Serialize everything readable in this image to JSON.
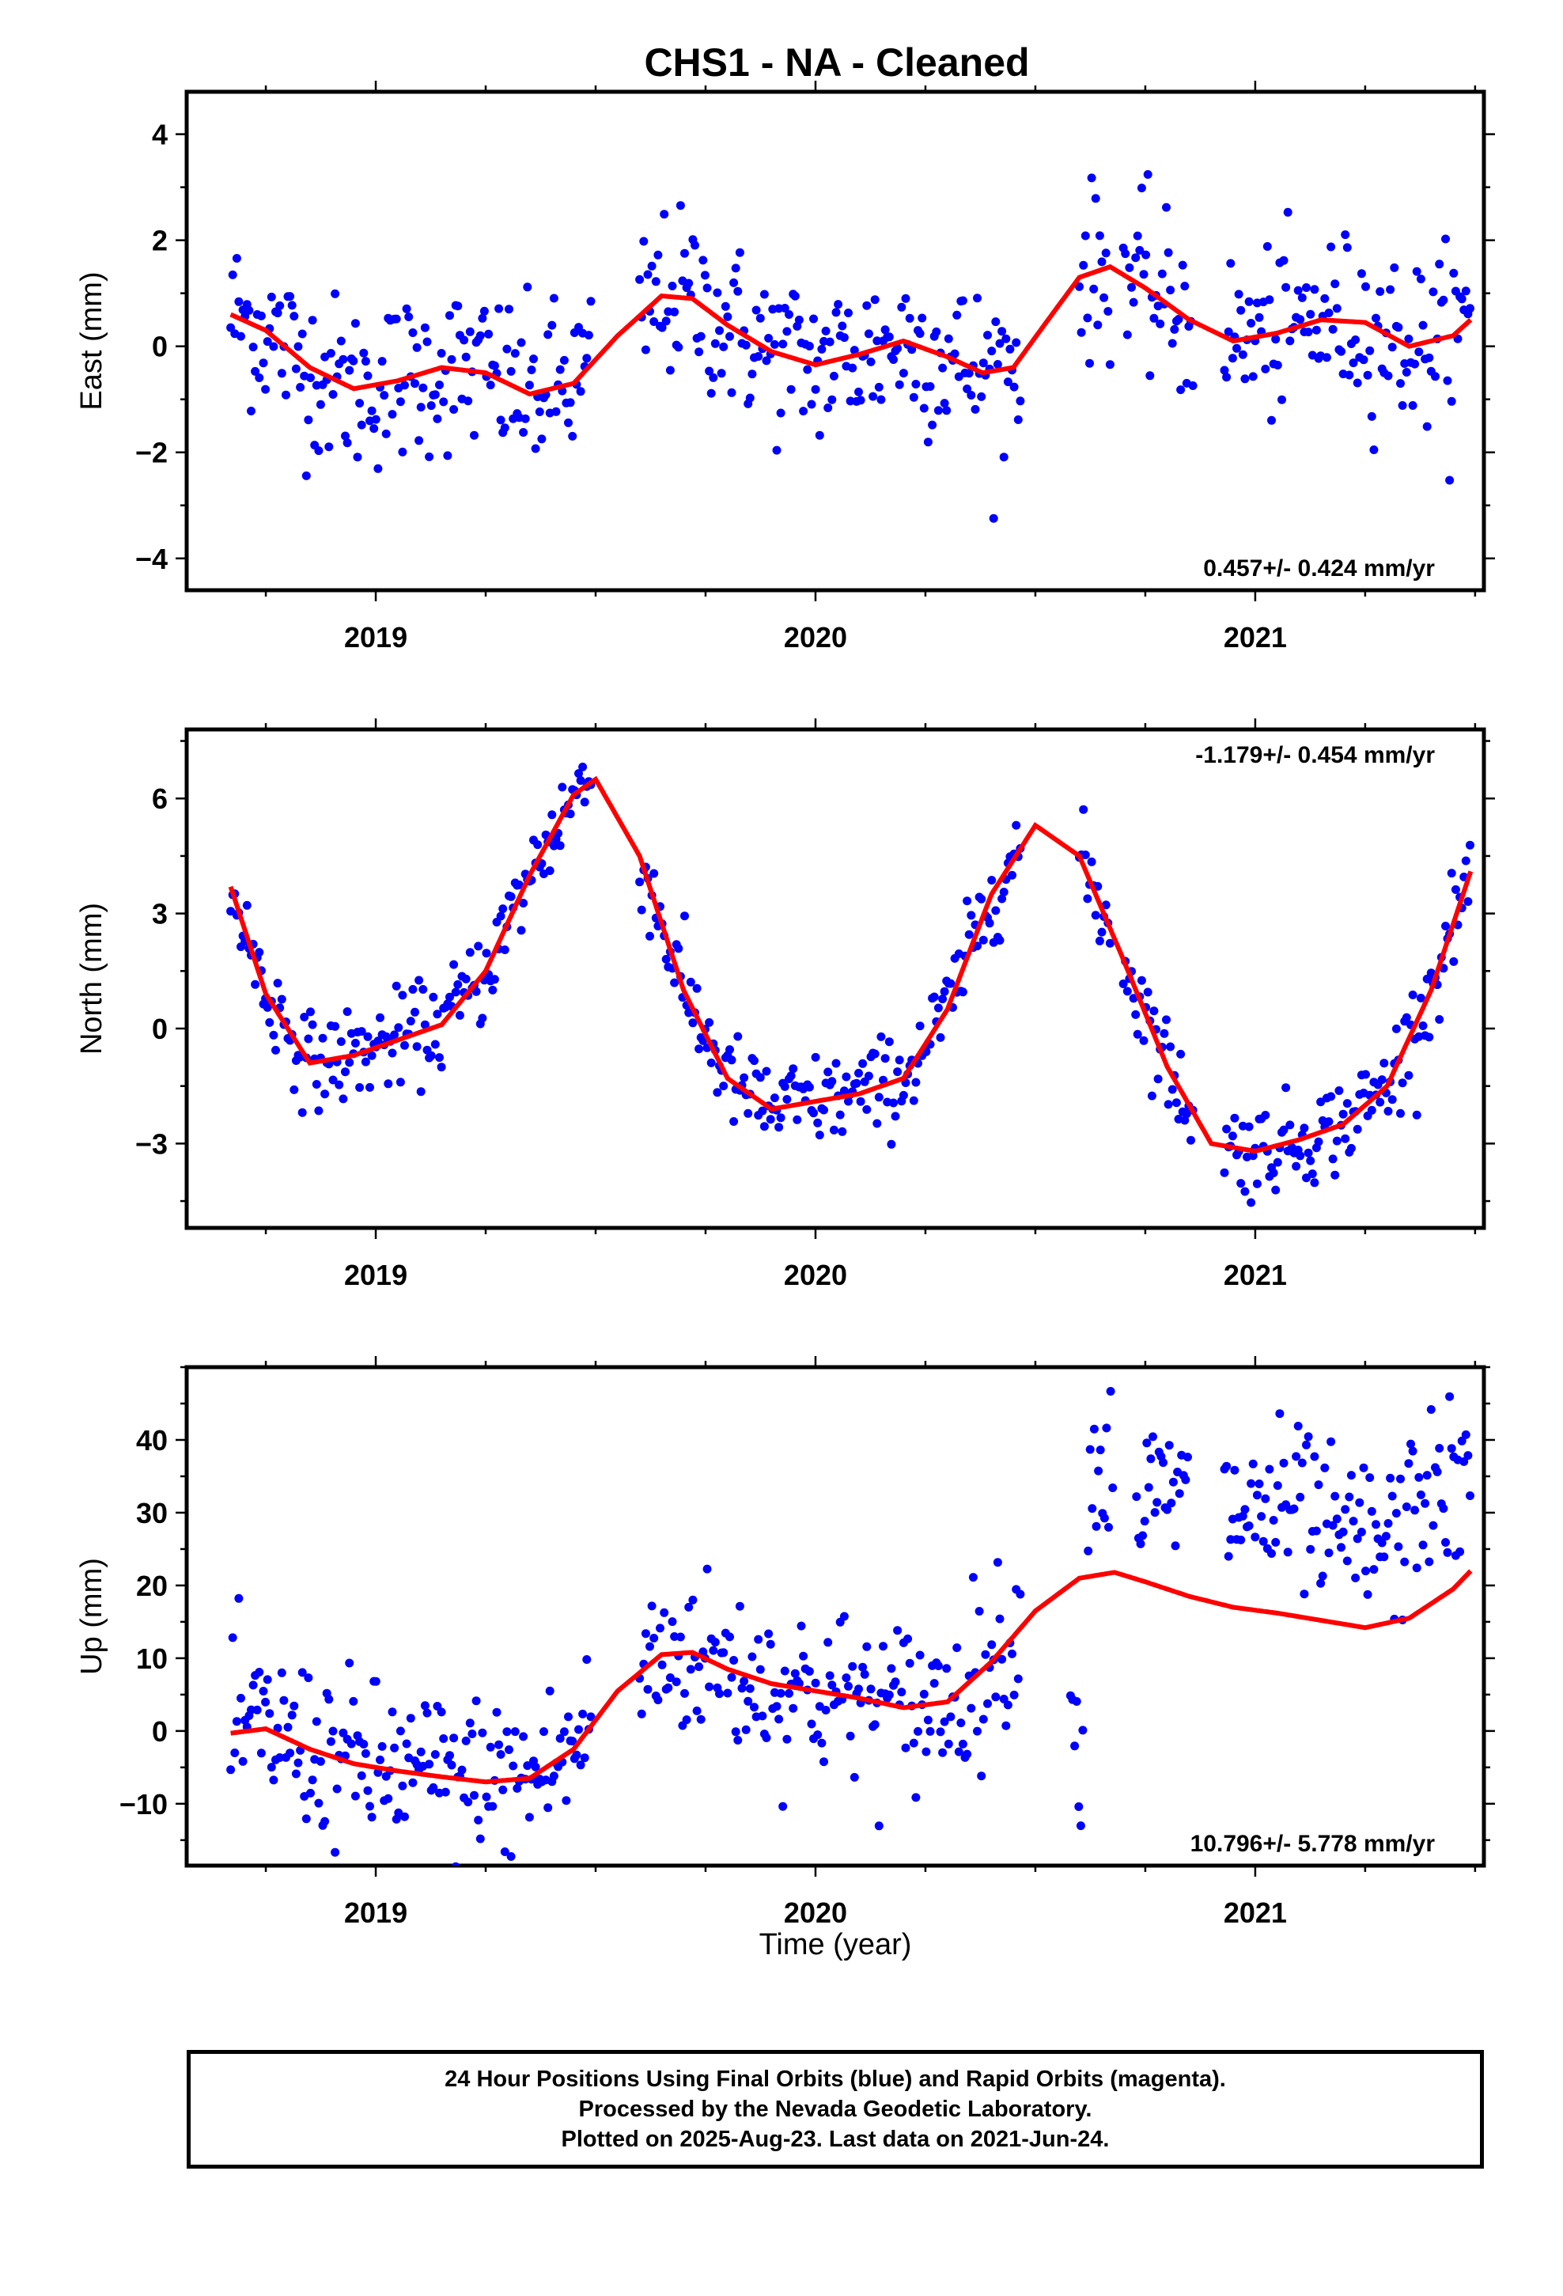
{
  "title": "CHS1  - NA - Cleaned",
  "footer": {
    "line1": "24 Hour Positions Using Final Orbits (blue) and Rapid Orbits (magenta).",
    "line2": "Processed by the Nevada Geodetic Laboratory.",
    "line3": "Plotted on 2025-Aug-23. Last data on 2021-Jun-24."
  },
  "colors": {
    "final_orbits": "#0000ff",
    "fit_line": "#ff0000"
  },
  "chart_data": [
    {
      "type": "scatter",
      "ylabel": "East (mm)",
      "rate_text": "0.457+/- 0.424 mm/yr",
      "xlim": [
        2018.57,
        2021.52
      ],
      "ylim": [
        -4.6,
        4.8
      ],
      "yticks": [
        {
          "v": 4,
          "label": "4"
        },
        {
          "v": 2,
          "label": "2"
        },
        {
          "v": 0,
          "label": "0"
        },
        {
          "v": -2,
          "label": "−2"
        },
        {
          "v": -4,
          "label": "−4"
        }
      ],
      "xticks": [
        {
          "v": 2019,
          "label": "2019"
        },
        {
          "v": 2020,
          "label": "2020"
        },
        {
          "v": 2021,
          "label": "2021"
        }
      ],
      "segments": [
        [
          2018.67,
          2019.49
        ],
        [
          2019.6,
          2020.47
        ],
        [
          2020.6,
          2020.67
        ],
        [
          2020.7,
          2020.86
        ],
        [
          2020.93,
          2021.49
        ]
      ],
      "fit": {
        "x": [
          2018.67,
          2018.75,
          2018.85,
          2018.95,
          2019.05,
          2019.15,
          2019.25,
          2019.35,
          2019.45,
          2019.55,
          2019.65,
          2019.72,
          2019.8,
          2019.9,
          2020.0,
          2020.1,
          2020.2,
          2020.3,
          2020.38,
          2020.45,
          2020.52,
          2020.6,
          2020.67,
          2020.75,
          2020.85,
          2020.95,
          2021.05,
          2021.15,
          2021.25,
          2021.35,
          2021.45,
          2021.49
        ],
        "y": [
          0.6,
          0.3,
          -0.4,
          -0.8,
          -0.65,
          -0.4,
          -0.5,
          -0.9,
          -0.7,
          0.2,
          0.95,
          0.9,
          0.4,
          -0.1,
          -0.35,
          -0.15,
          0.1,
          -0.2,
          -0.5,
          -0.4,
          0.4,
          1.3,
          1.5,
          1.1,
          0.5,
          0.1,
          0.25,
          0.5,
          0.45,
          0.0,
          0.2,
          0.5
        ]
      }
    },
    {
      "type": "scatter",
      "ylabel": "North (mm)",
      "rate_text": "-1.179+/- 0.454 mm/yr",
      "xlim": [
        2018.57,
        2021.52
      ],
      "ylim": [
        -5.2,
        7.8
      ],
      "yticks": [
        {
          "v": 6,
          "label": "6"
        },
        {
          "v": 3,
          "label": "3"
        },
        {
          "v": 0,
          "label": "0"
        },
        {
          "v": -3,
          "label": "−3"
        }
      ],
      "xticks": [
        {
          "v": 2019,
          "label": "2019"
        },
        {
          "v": 2020,
          "label": "2020"
        },
        {
          "v": 2021,
          "label": "2021"
        }
      ],
      "segments": [
        [
          2018.67,
          2019.49
        ],
        [
          2019.6,
          2020.47
        ],
        [
          2020.6,
          2020.67
        ],
        [
          2020.7,
          2020.86
        ],
        [
          2020.93,
          2021.49
        ]
      ],
      "fit": {
        "x": [
          2018.67,
          2018.75,
          2018.85,
          2018.95,
          2019.05,
          2019.15,
          2019.25,
          2019.35,
          2019.45,
          2019.5,
          2019.6,
          2019.7,
          2019.8,
          2019.9,
          2020.0,
          2020.1,
          2020.2,
          2020.3,
          2020.4,
          2020.5,
          2020.6,
          2020.7,
          2020.8,
          2020.9,
          2021.0,
          2021.1,
          2021.2,
          2021.3,
          2021.4,
          2021.49
        ],
        "y": [
          3.7,
          0.9,
          -0.9,
          -0.7,
          -0.3,
          0.1,
          1.5,
          4.0,
          6.1,
          6.5,
          4.5,
          1.0,
          -1.3,
          -2.1,
          -1.9,
          -1.7,
          -1.3,
          0.5,
          3.5,
          5.3,
          4.5,
          1.8,
          -1.0,
          -3.0,
          -3.2,
          -2.9,
          -2.5,
          -1.5,
          1.0,
          4.1
        ]
      }
    },
    {
      "type": "scatter",
      "ylabel": "Up (mm)",
      "rate_text": "10.796+/- 5.778 mm/yr",
      "xlabel": "Time (year)",
      "xlim": [
        2018.57,
        2021.52
      ],
      "ylim": [
        -18.5,
        50
      ],
      "yticks": [
        {
          "v": 40,
          "label": "40"
        },
        {
          "v": 30,
          "label": "30"
        },
        {
          "v": 20,
          "label": "20"
        },
        {
          "v": 10,
          "label": "10"
        },
        {
          "v": 0,
          "label": "0"
        },
        {
          "v": -10,
          "label": "−10"
        }
      ],
      "xticks": [
        {
          "v": 2019,
          "label": "2019"
        },
        {
          "v": 2020,
          "label": "2020"
        },
        {
          "v": 2021,
          "label": "2021"
        }
      ],
      "segments": [
        [
          2018.67,
          2019.49
        ],
        [
          2019.6,
          2020.47
        ],
        [
          2020.58,
          2020.61
        ],
        [
          2020.62,
          2020.68
        ],
        [
          2020.73,
          2020.85
        ],
        [
          2020.93,
          2021.49
        ]
      ],
      "fit": {
        "x": [
          2018.67,
          2018.75,
          2018.85,
          2018.95,
          2019.05,
          2019.15,
          2019.25,
          2019.35,
          2019.45,
          2019.55,
          2019.65,
          2019.72,
          2019.8,
          2019.9,
          2020.0,
          2020.1,
          2020.2,
          2020.3,
          2020.4,
          2020.5,
          2020.6,
          2020.68,
          2020.75,
          2020.85,
          2020.95,
          2021.05,
          2021.15,
          2021.25,
          2021.35,
          2021.45,
          2021.49
        ],
        "y": [
          -0.3,
          0.3,
          -2.5,
          -4.5,
          -5.5,
          -6.3,
          -7.0,
          -6.5,
          -2.5,
          5.5,
          10.5,
          10.8,
          8.5,
          6.5,
          5.5,
          4.5,
          3.2,
          4.0,
          9.5,
          16.5,
          21.0,
          21.8,
          20.5,
          18.5,
          17.0,
          16.2,
          15.2,
          14.2,
          15.5,
          19.5,
          22.0
        ]
      }
    }
  ]
}
